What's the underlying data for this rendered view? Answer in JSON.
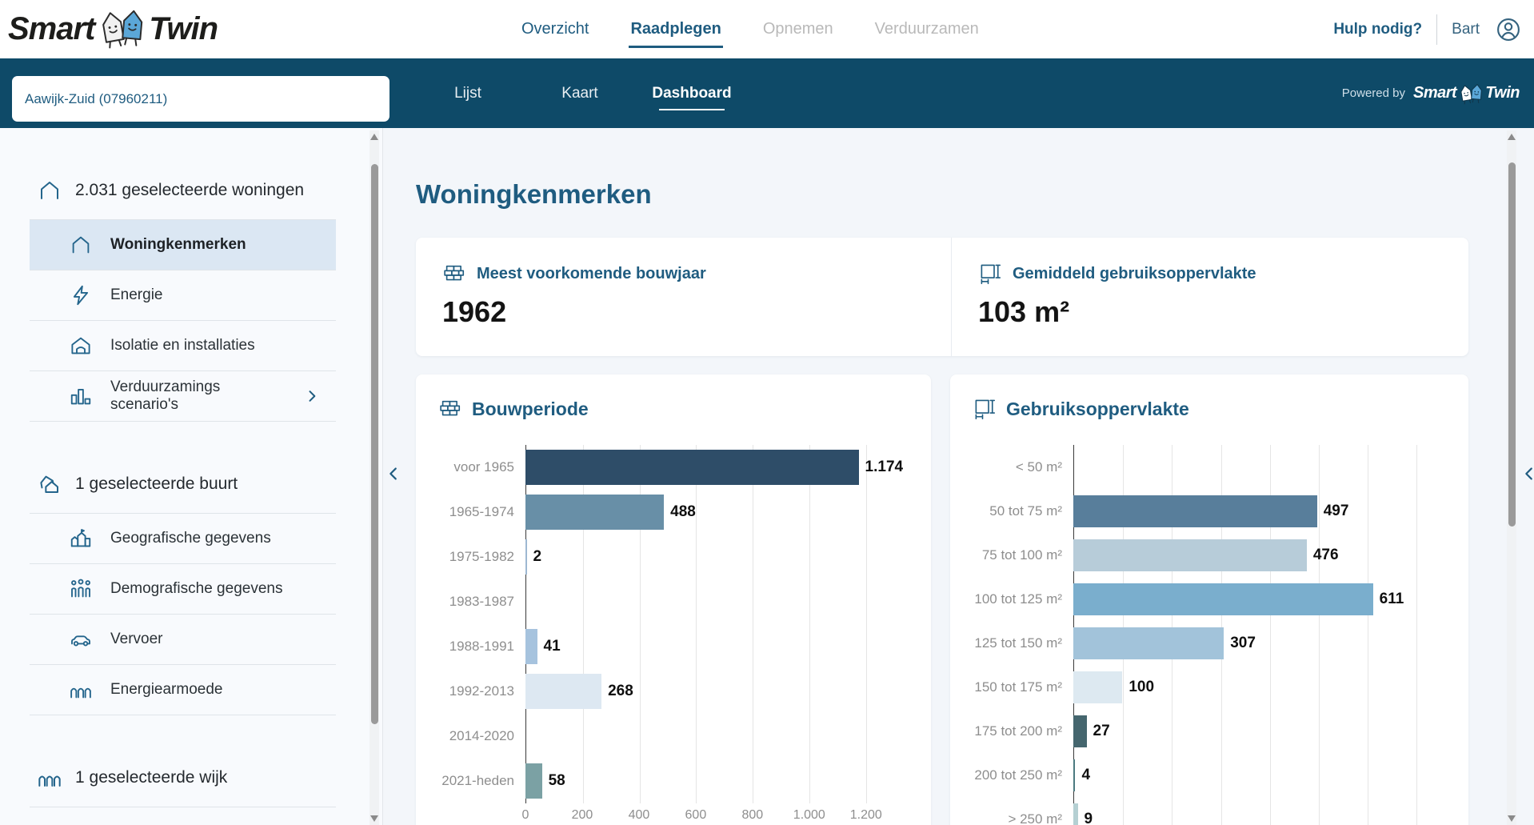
{
  "brand": {
    "smart": "Smart",
    "twin": "Twin"
  },
  "header": {
    "nav": [
      {
        "label": "Overzicht",
        "active": false,
        "disabled": false
      },
      {
        "label": "Raadplegen",
        "active": true,
        "disabled": false
      },
      {
        "label": "Opnemen",
        "active": false,
        "disabled": true
      },
      {
        "label": "Verduurzamen",
        "active": false,
        "disabled": true
      }
    ],
    "help_label": "Hulp nodig?",
    "user_name": "Bart"
  },
  "subheader": {
    "search_value": "Aawijk-Zuid (07960211)",
    "tabs": [
      {
        "label": "Lijst",
        "active": false
      },
      {
        "label": "Kaart",
        "active": false
      },
      {
        "label": "Dashboard",
        "active": true
      }
    ],
    "powered_by": "Powered by"
  },
  "sidebar": {
    "sections": [
      {
        "title": "2.031 geselecteerde woningen",
        "icon": "house-icon",
        "items": [
          {
            "label": "Woningkenmerken",
            "icon": "house-icon",
            "active": true,
            "chevron": false
          },
          {
            "label": "Energie",
            "icon": "lightning-icon",
            "active": false,
            "chevron": false
          },
          {
            "label": "Isolatie en installaties",
            "icon": "insulation-icon",
            "active": false,
            "chevron": false
          },
          {
            "label": "Verduurzamings scenario's",
            "icon": "bar-chart-icon",
            "active": false,
            "chevron": true
          }
        ]
      },
      {
        "title": "1 geselecteerde buurt",
        "icon": "houses-icon",
        "items": [
          {
            "label": "Geografische gegevens",
            "icon": "buildings-icon",
            "active": false,
            "chevron": false
          },
          {
            "label": "Demografische gegevens",
            "icon": "people-icon",
            "active": false,
            "chevron": false
          },
          {
            "label": "Vervoer",
            "icon": "car-icon",
            "active": false,
            "chevron": false
          },
          {
            "label": "Energiearmoede",
            "icon": "row-houses-icon",
            "active": false,
            "chevron": false
          }
        ]
      },
      {
        "title": "1 geselecteerde wijk",
        "icon": "row-houses-icon",
        "items": []
      }
    ]
  },
  "main": {
    "title": "Woningkenmerken",
    "stats": [
      {
        "icon": "bricks-icon",
        "label": "Meest voorkomende bouwjaar",
        "value": "1962"
      },
      {
        "icon": "area-icon",
        "label": "Gemiddeld gebruiksoppervlakte",
        "value": "103 m²"
      }
    ]
  },
  "chart_data": [
    {
      "type": "bar",
      "orientation": "horizontal",
      "title": "Bouwperiode",
      "icon": "bricks-icon",
      "categories": [
        "voor 1965",
        "1965-1974",
        "1975-1982",
        "1983-1987",
        "1988-1991",
        "1992-2013",
        "2014-2020",
        "2021-heden"
      ],
      "values": [
        1174,
        488,
        2,
        0,
        41,
        268,
        0,
        58
      ],
      "value_labels": [
        "1.174",
        "488",
        "2",
        "",
        "41",
        "268",
        "",
        "58"
      ],
      "bar_colors": [
        "#2e4d68",
        "#688fa7",
        "#9db8d2",
        "",
        "#a6c3de",
        "#dde8f2",
        "",
        "#7ba1a4"
      ],
      "xlim": [
        0,
        1350
      ],
      "x_tick_values": [
        0,
        200,
        400,
        600,
        800,
        1000,
        1200
      ],
      "x_ticks": [
        "0",
        "200",
        "400",
        "600",
        "800",
        "1.000",
        "1.200"
      ],
      "grid": "vertical",
      "legend": "none"
    },
    {
      "type": "bar",
      "orientation": "horizontal",
      "title": "Gebruiksoppervlakte",
      "icon": "area-icon",
      "categories": [
        "< 50 m²",
        "50 tot 75 m²",
        "75 tot 100 m²",
        "100 tot 125 m²",
        "125 tot 150 m²",
        "150 tot 175 m²",
        "175 tot 200 m²",
        "200 tot 250 m²",
        "> 250 m²"
      ],
      "values": [
        0,
        497,
        476,
        611,
        307,
        100,
        27,
        4,
        9
      ],
      "value_labels": [
        "",
        "497",
        "476",
        "611",
        "307",
        "100",
        "27",
        "4",
        "9"
      ],
      "bar_colors": [
        "",
        "#587e9b",
        "#b7ccd9",
        "#7aaecd",
        "#a2c3da",
        "#dde9f1",
        "#45666e",
        "#4c7a80",
        "#b5d0d3"
      ],
      "xlim": [
        0,
        760
      ],
      "x_tick_values": [
        0,
        100,
        200,
        300,
        400,
        500,
        600,
        700
      ],
      "x_ticks": [],
      "grid": "vertical",
      "legend": "none"
    }
  ],
  "colors": {
    "topbar": "#0e4a68",
    "accent": "#1f5c80",
    "active_item_bg": "#dbe7f3",
    "main_bg": "#f3f6fa",
    "logo_house_blue": "#5ba7d8"
  }
}
